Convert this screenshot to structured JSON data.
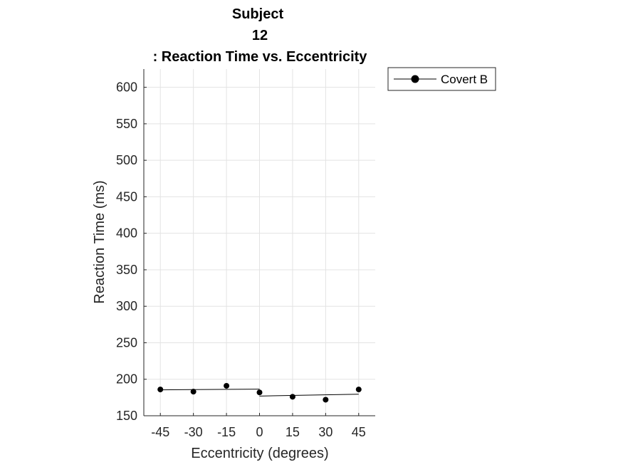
{
  "chart_data": {
    "type": "scatter",
    "title_lines": [
      "Subject",
      "12",
      ": Reaction Time vs. Eccentricity"
    ],
    "xlabel": "Eccentricity (degrees)",
    "ylabel": "Reaction Time (ms)",
    "xlim": [
      -52.5,
      52.5
    ],
    "ylim": [
      150,
      625
    ],
    "xticks": [
      -45,
      -30,
      -15,
      0,
      15,
      30,
      45
    ],
    "xtick_labels": [
      "-45",
      "-30",
      "-15",
      "0",
      "15",
      "30",
      "45"
    ],
    "yticks": [
      150,
      200,
      250,
      300,
      350,
      400,
      450,
      500,
      550,
      600
    ],
    "ytick_labels": [
      "150",
      "200",
      "250",
      "300",
      "350",
      "400",
      "450",
      "500",
      "550",
      "600"
    ],
    "grid": true,
    "legend_position": "outside top-right",
    "series": [
      {
        "name": "Covert B",
        "color": "#000000",
        "marker": "filled-circle",
        "points": [
          {
            "x": -45,
            "y": 186
          },
          {
            "x": -30,
            "y": 183
          },
          {
            "x": -15,
            "y": 191
          },
          {
            "x": 0,
            "y": 182
          },
          {
            "x": 15,
            "y": 176
          },
          {
            "x": 30,
            "y": 172
          },
          {
            "x": 45,
            "y": 186
          }
        ]
      }
    ],
    "fit_lines": [
      {
        "x": [
          -45,
          0
        ],
        "y": [
          185.5,
          186.5
        ]
      },
      {
        "x": [
          0,
          45
        ],
        "y": [
          177,
          179.5
        ]
      }
    ]
  }
}
